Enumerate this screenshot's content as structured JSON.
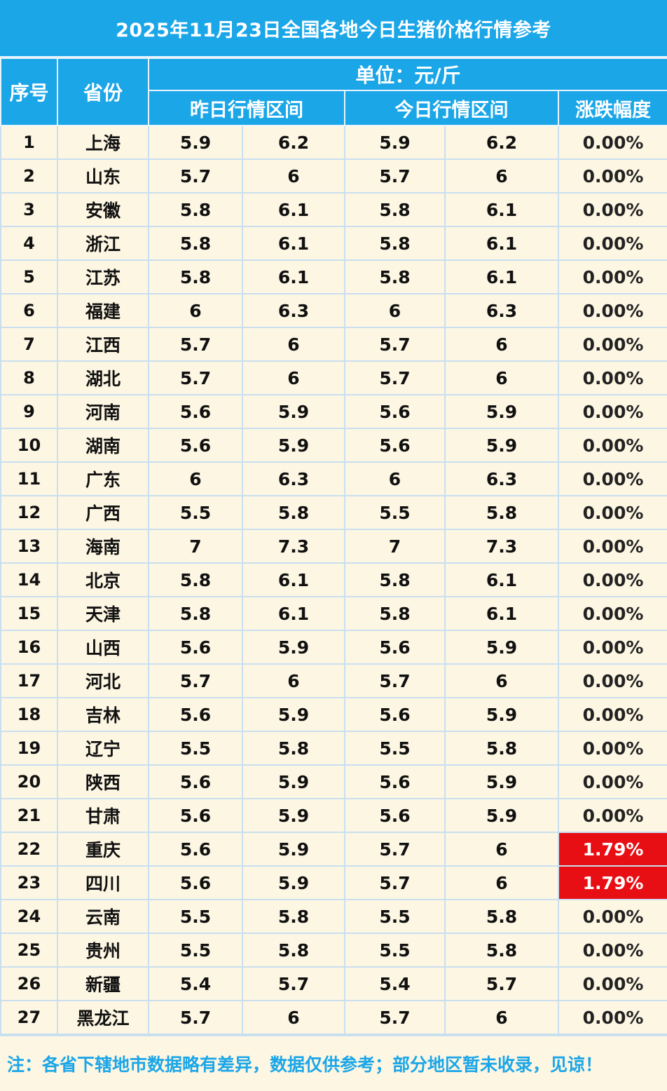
{
  "title": "2025年11月23日全国各地今日生猪价格行情参考",
  "header": {
    "index": "序号",
    "province": "省份",
    "unit": "单位：元/斤",
    "yesterday": "昨日行情区间",
    "today": "今日行情区间",
    "change": "涨跌幅度"
  },
  "colors": {
    "header_bg": "#1ba6e8",
    "body_bg": "#fdf6e3",
    "up_bg": "#e80f14"
  },
  "rows": [
    {
      "n": "1",
      "p": "上海",
      "yl": "5.9",
      "yh": "6.2",
      "tl": "5.9",
      "th": "6.2",
      "c": "0.00%"
    },
    {
      "n": "2",
      "p": "山东",
      "yl": "5.7",
      "yh": "6",
      "tl": "5.7",
      "th": "6",
      "c": "0.00%"
    },
    {
      "n": "3",
      "p": "安徽",
      "yl": "5.8",
      "yh": "6.1",
      "tl": "5.8",
      "th": "6.1",
      "c": "0.00%"
    },
    {
      "n": "4",
      "p": "浙江",
      "yl": "5.8",
      "yh": "6.1",
      "tl": "5.8",
      "th": "6.1",
      "c": "0.00%"
    },
    {
      "n": "5",
      "p": "江苏",
      "yl": "5.8",
      "yh": "6.1",
      "tl": "5.8",
      "th": "6.1",
      "c": "0.00%"
    },
    {
      "n": "6",
      "p": "福建",
      "yl": "6",
      "yh": "6.3",
      "tl": "6",
      "th": "6.3",
      "c": "0.00%"
    },
    {
      "n": "7",
      "p": "江西",
      "yl": "5.7",
      "yh": "6",
      "tl": "5.7",
      "th": "6",
      "c": "0.00%"
    },
    {
      "n": "8",
      "p": "湖北",
      "yl": "5.7",
      "yh": "6",
      "tl": "5.7",
      "th": "6",
      "c": "0.00%"
    },
    {
      "n": "9",
      "p": "河南",
      "yl": "5.6",
      "yh": "5.9",
      "tl": "5.6",
      "th": "5.9",
      "c": "0.00%"
    },
    {
      "n": "10",
      "p": "湖南",
      "yl": "5.6",
      "yh": "5.9",
      "tl": "5.6",
      "th": "5.9",
      "c": "0.00%"
    },
    {
      "n": "11",
      "p": "广东",
      "yl": "6",
      "yh": "6.3",
      "tl": "6",
      "th": "6.3",
      "c": "0.00%"
    },
    {
      "n": "12",
      "p": "广西",
      "yl": "5.5",
      "yh": "5.8",
      "tl": "5.5",
      "th": "5.8",
      "c": "0.00%"
    },
    {
      "n": "13",
      "p": "海南",
      "yl": "7",
      "yh": "7.3",
      "tl": "7",
      "th": "7.3",
      "c": "0.00%"
    },
    {
      "n": "14",
      "p": "北京",
      "yl": "5.8",
      "yh": "6.1",
      "tl": "5.8",
      "th": "6.1",
      "c": "0.00%"
    },
    {
      "n": "15",
      "p": "天津",
      "yl": "5.8",
      "yh": "6.1",
      "tl": "5.8",
      "th": "6.1",
      "c": "0.00%"
    },
    {
      "n": "16",
      "p": "山西",
      "yl": "5.6",
      "yh": "5.9",
      "tl": "5.6",
      "th": "5.9",
      "c": "0.00%"
    },
    {
      "n": "17",
      "p": "河北",
      "yl": "5.7",
      "yh": "6",
      "tl": "5.7",
      "th": "6",
      "c": "0.00%"
    },
    {
      "n": "18",
      "p": "吉林",
      "yl": "5.6",
      "yh": "5.9",
      "tl": "5.6",
      "th": "5.9",
      "c": "0.00%"
    },
    {
      "n": "19",
      "p": "辽宁",
      "yl": "5.5",
      "yh": "5.8",
      "tl": "5.5",
      "th": "5.8",
      "c": "0.00%"
    },
    {
      "n": "20",
      "p": "陕西",
      "yl": "5.6",
      "yh": "5.9",
      "tl": "5.6",
      "th": "5.9",
      "c": "0.00%"
    },
    {
      "n": "21",
      "p": "甘肃",
      "yl": "5.6",
      "yh": "5.9",
      "tl": "5.6",
      "th": "5.9",
      "c": "0.00%"
    },
    {
      "n": "22",
      "p": "重庆",
      "yl": "5.6",
      "yh": "5.9",
      "tl": "5.7",
      "th": "6",
      "c": "1.79%",
      "up": true
    },
    {
      "n": "23",
      "p": "四川",
      "yl": "5.6",
      "yh": "5.9",
      "tl": "5.7",
      "th": "6",
      "c": "1.79%",
      "up": true
    },
    {
      "n": "24",
      "p": "云南",
      "yl": "5.5",
      "yh": "5.8",
      "tl": "5.5",
      "th": "5.8",
      "c": "0.00%"
    },
    {
      "n": "25",
      "p": "贵州",
      "yl": "5.5",
      "yh": "5.8",
      "tl": "5.5",
      "th": "5.8",
      "c": "0.00%"
    },
    {
      "n": "26",
      "p": "新疆",
      "yl": "5.4",
      "yh": "5.7",
      "tl": "5.4",
      "th": "5.7",
      "c": "0.00%"
    },
    {
      "n": "27",
      "p": "黑龙江",
      "yl": "5.7",
      "yh": "6",
      "tl": "5.7",
      "th": "6",
      "c": "0.00%"
    }
  ],
  "note": "注：各省下辖地市数据略有差异，数据仅供参考；部分地区暂未收录，见谅！"
}
